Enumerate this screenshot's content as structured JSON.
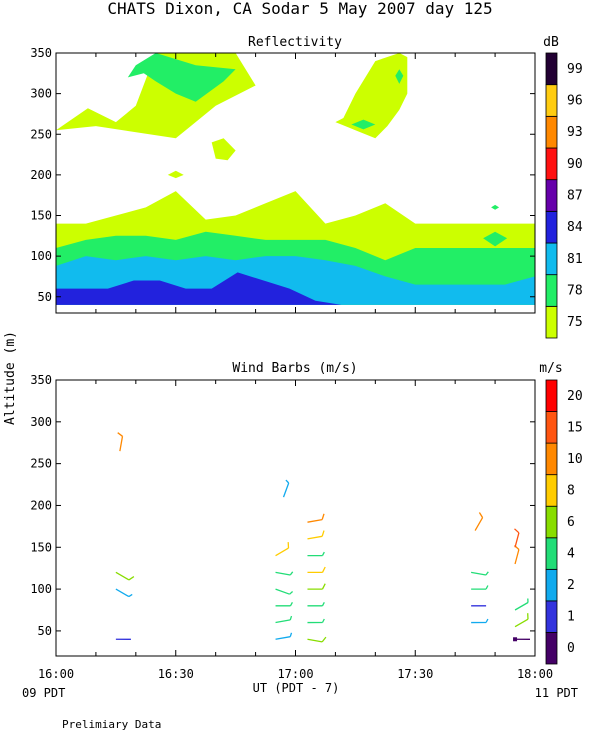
{
  "title": "CHATS Dixon, CA  Sodar   5 May 2007  day 125",
  "ylabel": "Altitude (m)",
  "xlabel": "UT  (PDT - 7)",
  "left_footer": "09 PDT",
  "right_footer": "11 PDT",
  "note": "Prelimiary Data",
  "colors": {
    "palette": [
      "#ccff00",
      "#22ee66",
      "#11bbee",
      "#2222dd",
      "#6600aa",
      "#ff1111",
      "#ff8800",
      "#ffcc11",
      "#220033"
    ],
    "wind_palette": [
      "#440066",
      "#3333dd",
      "#11aaee",
      "#22dd77",
      "#88dd00",
      "#ffcc00",
      "#ff8800",
      "#ff5511",
      "#ff0000"
    ]
  },
  "x_ticks": [
    "16:00",
    "16:30",
    "17:00",
    "17:30",
    "18:00"
  ],
  "chart_data": [
    {
      "type": "heatmap",
      "title": "Reflectivity",
      "unit": "dB",
      "x_range": [
        "16:00",
        "18:00"
      ],
      "y_ticks": [
        50,
        100,
        150,
        200,
        250,
        300,
        350
      ],
      "ylim": [
        30,
        350
      ],
      "colorbar_labels": [
        "75",
        "78",
        "81",
        "84",
        "87",
        "90",
        "93",
        "96",
        "99"
      ],
      "layers": [
        {
          "level": "75",
          "x_min": 0,
          "x_max": 120,
          "y_lower": [
            40,
            40,
            40,
            40,
            40,
            40,
            40,
            40,
            40,
            40,
            40,
            40,
            40,
            40,
            40,
            40,
            40
          ],
          "y_upper": [
            140,
            140,
            150,
            160,
            180,
            145,
            150,
            165,
            180,
            140,
            150,
            165,
            140,
            140,
            140,
            140,
            140
          ]
        },
        {
          "level": "78",
          "x_min": 0,
          "x_max": 120,
          "y_lower": [
            40,
            40,
            40,
            40,
            40,
            40,
            40,
            40,
            40,
            40,
            40,
            40,
            40,
            40,
            40,
            40,
            40
          ],
          "y_upper": [
            110,
            120,
            125,
            125,
            120,
            130,
            125,
            120,
            120,
            120,
            110,
            95,
            110,
            110,
            110,
            110,
            110
          ]
        },
        {
          "level": "81",
          "x_min": 0,
          "x_max": 120,
          "y_lower": [
            40,
            40,
            40,
            40,
            40,
            40,
            40,
            40,
            40,
            40,
            40,
            40,
            40,
            40,
            40,
            40,
            40
          ],
          "y_upper": [
            88,
            100,
            95,
            100,
            95,
            100,
            95,
            100,
            100,
            95,
            88,
            75,
            65,
            65,
            65,
            65,
            75
          ]
        },
        {
          "level": "84",
          "x_min": 0,
          "x_max": 104,
          "y_lower": [
            40,
            40,
            40,
            40,
            40,
            40,
            40,
            40,
            40,
            40,
            40,
            40,
            40,
            40,
            40,
            40,
            40
          ],
          "y_upper": [
            60,
            60,
            60,
            70,
            70,
            60,
            60,
            80,
            70,
            60,
            45,
            40,
            40,
            40,
            40,
            40,
            40
          ]
        }
      ],
      "blobs": [
        {
          "level": "75",
          "x": [
            0,
            8,
            15,
            20,
            25,
            45,
            50,
            40,
            30,
            10,
            0
          ],
          "y": [
            255,
            282,
            265,
            285,
            350,
            350,
            310,
            285,
            245,
            260,
            255
          ]
        },
        {
          "level": "78",
          "x": [
            18,
            20,
            25,
            35,
            45,
            42,
            35,
            30,
            25,
            22,
            18
          ],
          "y": [
            320,
            335,
            350,
            335,
            330,
            315,
            290,
            300,
            315,
            325,
            320
          ]
        },
        {
          "level": "75",
          "x": [
            39,
            42,
            45,
            43,
            40,
            39
          ],
          "y": [
            240,
            245,
            230,
            218,
            220,
            240
          ]
        },
        {
          "level": "75",
          "x": [
            28,
            30,
            32,
            30,
            28
          ],
          "y": [
            200,
            205,
            200,
            196,
            200
          ]
        },
        {
          "level": "75",
          "x": [
            70,
            75,
            80,
            83,
            86,
            88,
            88,
            86,
            80,
            75,
            72,
            70
          ],
          "y": [
            265,
            255,
            245,
            260,
            280,
            300,
            345,
            350,
            340,
            300,
            270,
            265
          ]
        },
        {
          "level": "78",
          "x": [
            74,
            77,
            80,
            77,
            74
          ],
          "y": [
            262,
            268,
            262,
            256,
            262
          ]
        },
        {
          "level": "78",
          "x": [
            85,
            86,
            87,
            86,
            85
          ],
          "y": [
            322,
            330,
            322,
            312,
            322
          ]
        },
        {
          "level": "78",
          "x": [
            107,
            110,
            113,
            110,
            107
          ],
          "y": [
            122,
            130,
            122,
            112,
            122
          ]
        },
        {
          "level": "78",
          "x": [
            109,
            110,
            111,
            110,
            109
          ],
          "y": [
            160,
            163,
            160,
            157,
            160
          ]
        }
      ]
    },
    {
      "type": "scatter",
      "title": "Wind Barbs (m/s)",
      "unit": "m/s",
      "y_ticks": [
        50,
        100,
        150,
        200,
        250,
        300,
        350
      ],
      "ylim": [
        20,
        350
      ],
      "colorbar_labels": [
        "0",
        "1",
        "2",
        "4",
        "6",
        "8",
        "10",
        "15",
        "20"
      ],
      "points": [
        {
          "t": "16:15",
          "alt": 40,
          "speed": 1,
          "dir": 90
        },
        {
          "t": "16:15",
          "alt": 100,
          "speed": 2,
          "dir": 120
        },
        {
          "t": "16:15",
          "alt": 120,
          "speed": 6,
          "dir": 120
        },
        {
          "t": "16:16",
          "alt": 265,
          "speed": 10,
          "dir": 10
        },
        {
          "t": "16:55",
          "alt": 40,
          "speed": 2,
          "dir": 80
        },
        {
          "t": "16:55",
          "alt": 60,
          "speed": 4,
          "dir": 80
        },
        {
          "t": "16:55",
          "alt": 80,
          "speed": 4,
          "dir": 90
        },
        {
          "t": "16:55",
          "alt": 100,
          "speed": 4,
          "dir": 110
        },
        {
          "t": "16:55",
          "alt": 120,
          "speed": 4,
          "dir": 100
        },
        {
          "t": "16:55",
          "alt": 140,
          "speed": 8,
          "dir": 60
        },
        {
          "t": "16:57",
          "alt": 210,
          "speed": 2,
          "dir": 20
        },
        {
          "t": "17:03",
          "alt": 40,
          "speed": 6,
          "dir": 100
        },
        {
          "t": "17:03",
          "alt": 60,
          "speed": 4,
          "dir": 90
        },
        {
          "t": "17:03",
          "alt": 80,
          "speed": 4,
          "dir": 90
        },
        {
          "t": "17:03",
          "alt": 100,
          "speed": 6,
          "dir": 90
        },
        {
          "t": "17:03",
          "alt": 120,
          "speed": 8,
          "dir": 90
        },
        {
          "t": "17:03",
          "alt": 140,
          "speed": 4,
          "dir": 90
        },
        {
          "t": "17:03",
          "alt": 160,
          "speed": 8,
          "dir": 80
        },
        {
          "t": "17:03",
          "alt": 180,
          "speed": 10,
          "dir": 80
        },
        {
          "t": "17:44",
          "alt": 60,
          "speed": 2,
          "dir": 90
        },
        {
          "t": "17:44",
          "alt": 80,
          "speed": 1,
          "dir": 90
        },
        {
          "t": "17:44",
          "alt": 100,
          "speed": 4,
          "dir": 90
        },
        {
          "t": "17:44",
          "alt": 120,
          "speed": 4,
          "dir": 100
        },
        {
          "t": "17:45",
          "alt": 170,
          "speed": 10,
          "dir": 30
        },
        {
          "t": "17:55",
          "alt": 40,
          "speed": 0,
          "dir": 90
        },
        {
          "t": "17:55",
          "alt": 55,
          "speed": 6,
          "dir": 60
        },
        {
          "t": "17:55",
          "alt": 75,
          "speed": 4,
          "dir": 60
        },
        {
          "t": "17:55",
          "alt": 130,
          "speed": 10,
          "dir": 15
        },
        {
          "t": "17:55",
          "alt": 150,
          "speed": 15,
          "dir": 15
        }
      ]
    }
  ]
}
